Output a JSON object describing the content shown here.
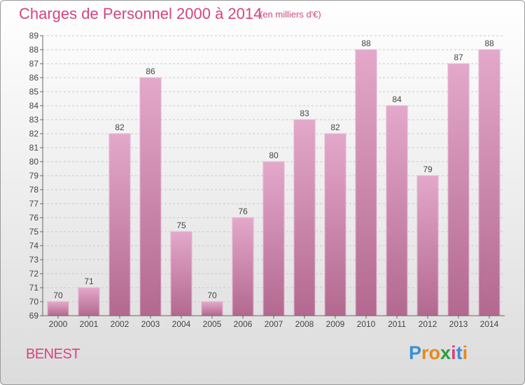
{
  "chart_data": {
    "type": "bar",
    "title": "Charges de Personnel 2000 à 2014",
    "subtitle": "(en milliers d'€)",
    "categories": [
      "2000",
      "2001",
      "2002",
      "2003",
      "2004",
      "2005",
      "2006",
      "2007",
      "2008",
      "2009",
      "2010",
      "2011",
      "2012",
      "2013",
      "2014"
    ],
    "values": [
      70,
      71,
      82,
      86,
      75,
      70,
      76,
      80,
      83,
      82,
      88,
      84,
      79,
      87,
      88
    ],
    "ylim": [
      69,
      89
    ],
    "yticks": [
      69,
      70,
      71,
      72,
      73,
      74,
      75,
      76,
      77,
      78,
      79,
      80,
      81,
      82,
      83,
      84,
      85,
      86,
      87,
      88,
      89
    ],
    "grid": true,
    "bar_color": "#d88eb8"
  },
  "place_name": "BENEST",
  "logo": {
    "letters": [
      "P",
      "r",
      "o",
      "x",
      "i",
      "t",
      "i"
    ],
    "colors": [
      "#3a8fd6",
      "#e8891c",
      "#e8891c",
      "#2e9e3f",
      "#d4457f",
      "#3a8fd6",
      "#e8891c"
    ]
  }
}
